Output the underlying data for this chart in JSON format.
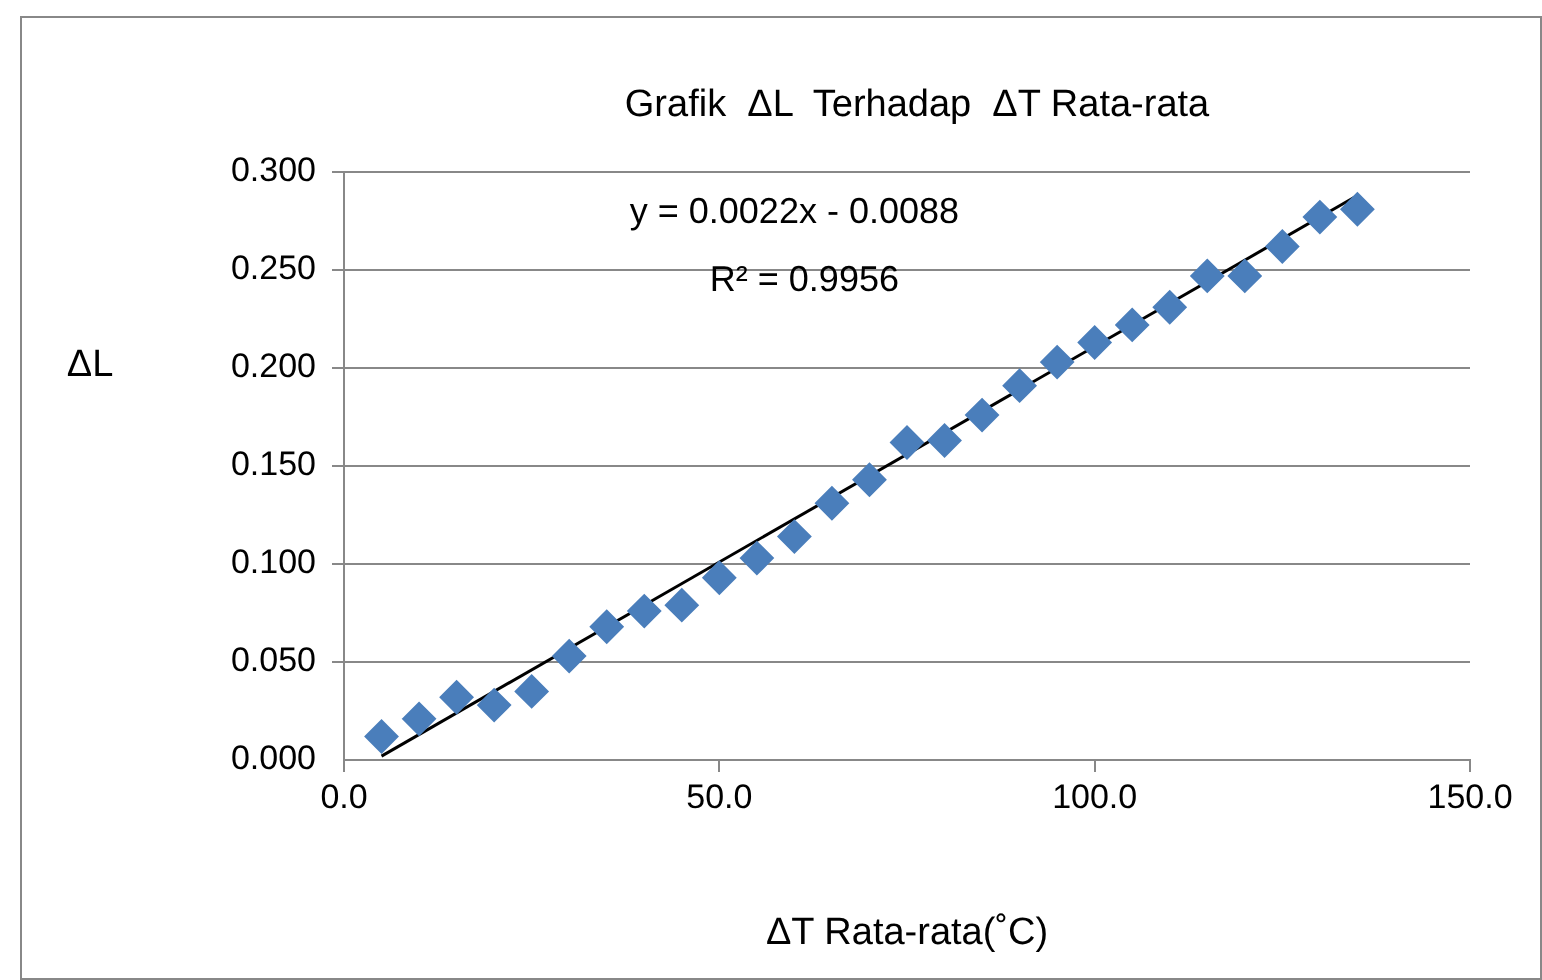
{
  "chart_data": {
    "type": "scatter",
    "title": "Grafik  ΔL  Terhadap  ΔT Rata-rata",
    "xlabel": "ΔT Rata-rata(˚C)",
    "ylabel": "ΔL",
    "annotations": [
      "y = 0.0022x - 0.0088",
      "R² = 0.9956"
    ],
    "grid": "y",
    "legend": false,
    "xlim": [
      0,
      150
    ],
    "xticks": [
      {
        "value": 0,
        "label": "0.0"
      },
      {
        "value": 50,
        "label": "50.0"
      },
      {
        "value": 100,
        "label": "100.0"
      },
      {
        "value": 150,
        "label": "150.0"
      }
    ],
    "ylim": [
      0,
      0.3
    ],
    "yticks": [
      {
        "value": 0,
        "label": "0.000"
      },
      {
        "value": 0.05,
        "label": "0.050"
      },
      {
        "value": 0.1,
        "label": "0.100"
      },
      {
        "value": 0.15,
        "label": "0.150"
      },
      {
        "value": 0.2,
        "label": "0.200"
      },
      {
        "value": 0.25,
        "label": "0.250"
      },
      {
        "value": 0.3,
        "label": "0.300"
      }
    ],
    "series": [
      {
        "type": "scatter",
        "marker": "diamond",
        "color": "#4a7ebb",
        "x": [
          5,
          10,
          15,
          20,
          25,
          30,
          35,
          40,
          45,
          50,
          55,
          60,
          65,
          70,
          75,
          80,
          85,
          90,
          95,
          100,
          105,
          110,
          115,
          120,
          125,
          130,
          135
        ],
        "values": [
          0.012,
          0.021,
          0.032,
          0.028,
          0.035,
          0.053,
          0.068,
          0.076,
          0.079,
          0.093,
          0.103,
          0.114,
          0.131,
          0.143,
          0.162,
          0.163,
          0.176,
          0.191,
          0.203,
          0.213,
          0.222,
          0.231,
          0.247,
          0.247,
          0.262,
          0.277,
          0.281
        ]
      },
      {
        "type": "line",
        "marker": "none",
        "color": "#000000",
        "x": [
          5,
          135
        ],
        "values": [
          0.002,
          0.288
        ]
      }
    ]
  }
}
